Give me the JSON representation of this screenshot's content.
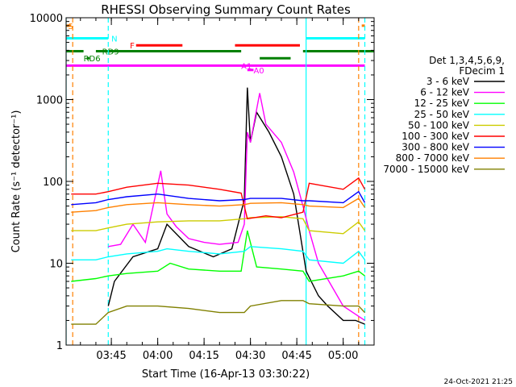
{
  "chart_data": {
    "type": "line",
    "title": "RHESSI Observing Summary Count Rates",
    "xlabel": "Start Time (16-Apr-13 03:30:22)",
    "ylabel": "Count Rate (s⁻¹ detector⁻¹)",
    "ylog": true,
    "ylim": [
      1,
      10000
    ],
    "yticks": [
      1,
      10,
      100,
      1000,
      10000
    ],
    "ytick_labels": [
      "1",
      "10",
      "100",
      "1000",
      "10000"
    ],
    "xlim": [
      "03:30:22",
      "05:10:00"
    ],
    "xticks": [
      "03:45",
      "04:00",
      "04:15",
      "04:30",
      "04:45",
      "05:00"
    ],
    "legend_header": [
      "Det 1,3,4,5,6,9,",
      "FDecim 1"
    ],
    "legend_position": "right",
    "timestamp": "24-Oct-2021 21:25",
    "series": [
      {
        "name": "3 - 6 keV",
        "color": "#000000",
        "x": [
          "03:31:30",
          "03:38",
          "03:44",
          "03:46",
          "03:52",
          "04:00",
          "04:03",
          "04:10",
          "04:18",
          "04:24",
          "04:28",
          "04:29",
          "04:30",
          "04:32",
          "04:36",
          "04:40",
          "04:44",
          "04:48",
          "04:52",
          "04:55",
          "05:00",
          "05:04",
          "05:07"
        ],
        "y": [
          null,
          null,
          3,
          6,
          12,
          15,
          30,
          16,
          12,
          15,
          60,
          1400,
          300,
          700,
          400,
          200,
          70,
          8,
          4,
          3,
          2,
          2,
          1.8
        ]
      },
      {
        "name": "6 - 12 keV",
        "color": "#ff00ff",
        "x": [
          "03:32",
          "03:38",
          "03:44",
          "03:48",
          "03:52",
          "03:56",
          "04:01",
          "04:03",
          "04:06",
          "04:10",
          "04:15",
          "04:20",
          "04:26",
          "04:28",
          "04:29",
          "04:30",
          "04:33",
          "04:35",
          "04:40",
          "04:44",
          "04:47",
          "04:49",
          "04:52",
          "05:00",
          "05:07"
        ],
        "y": [
          null,
          null,
          16,
          17,
          30,
          18,
          135,
          40,
          28,
          20,
          18,
          17,
          18,
          30,
          400,
          300,
          1200,
          500,
          300,
          130,
          50,
          25,
          10,
          3,
          2
        ]
      },
      {
        "name": "12 - 25 keV",
        "color": "#00ff00",
        "x": [
          "03:32",
          "03:40",
          "03:44",
          "03:50",
          "04:00",
          "04:04",
          "04:10",
          "04:20",
          "04:27",
          "04:29",
          "04:32",
          "04:40",
          "04:47",
          "04:49",
          "05:00",
          "05:05",
          "05:07"
        ],
        "y": [
          6,
          6.5,
          7,
          7.5,
          8,
          10,
          8.5,
          8,
          8,
          25,
          9,
          8.5,
          8,
          6,
          7,
          8,
          7
        ]
      },
      {
        "name": "25 - 50 keV",
        "color": "#00ffff",
        "x": [
          "03:32",
          "03:40",
          "03:44",
          "03:50",
          "04:00",
          "04:03",
          "04:10",
          "04:20",
          "04:28",
          "04:30",
          "04:40",
          "04:47",
          "04:49",
          "05:00",
          "05:05",
          "05:07"
        ],
        "y": [
          11,
          11,
          12,
          13,
          14,
          15,
          14,
          13,
          14,
          16,
          15,
          14,
          11,
          10,
          14,
          11
        ]
      },
      {
        "name": "50 - 100 keV",
        "color": "#cccc00",
        "x": [
          "03:32",
          "03:40",
          "03:44",
          "03:50",
          "04:00",
          "04:10",
          "04:20",
          "04:28",
          "04:30",
          "04:40",
          "04:47",
          "04:49",
          "05:00",
          "05:05",
          "05:07"
        ],
        "y": [
          25,
          25,
          27,
          30,
          32,
          33,
          33,
          35,
          36,
          37,
          35,
          25,
          23,
          32,
          25
        ]
      },
      {
        "name": "100 - 300 keV",
        "color": "#ff0000",
        "x": [
          "03:32",
          "03:40",
          "03:44",
          "03:50",
          "04:00",
          "04:10",
          "04:20",
          "04:27",
          "04:29",
          "04:35",
          "04:40",
          "04:47",
          "04:49",
          "05:00",
          "05:05",
          "05:07"
        ],
        "y": [
          70,
          70,
          75,
          85,
          95,
          90,
          80,
          72,
          35,
          38,
          36,
          42,
          95,
          80,
          110,
          80
        ]
      },
      {
        "name": "300 - 800 keV",
        "color": "#0000ff",
        "x": [
          "03:32",
          "03:40",
          "03:44",
          "03:50",
          "04:00",
          "04:10",
          "04:20",
          "04:28",
          "04:30",
          "04:40",
          "04:47",
          "04:49",
          "05:00",
          "05:05",
          "05:07"
        ],
        "y": [
          52,
          55,
          60,
          65,
          70,
          62,
          58,
          60,
          62,
          62,
          58,
          58,
          55,
          75,
          55
        ]
      },
      {
        "name": "800 - 7000 keV",
        "color": "#ff8000",
        "x": [
          "03:32",
          "03:40",
          "03:44",
          "03:50",
          "04:00",
          "04:10",
          "04:20",
          "04:28",
          "04:30",
          "04:40",
          "04:47",
          "04:49",
          "05:00",
          "05:05",
          "05:07"
        ],
        "y": [
          42,
          44,
          48,
          52,
          55,
          52,
          50,
          52,
          54,
          55,
          52,
          50,
          48,
          62,
          48
        ]
      },
      {
        "name": "7000 - 15000 keV",
        "color": "#808000",
        "x": [
          "03:32",
          "03:40",
          "03:44",
          "03:50",
          "04:00",
          "04:10",
          "04:20",
          "04:28",
          "04:30",
          "04:40",
          "04:47",
          "04:49",
          "05:00",
          "05:05",
          "05:07"
        ],
        "y": [
          1.8,
          1.8,
          2.5,
          3,
          3,
          2.8,
          2.5,
          2.5,
          3,
          3.5,
          3.5,
          3.2,
          3,
          3,
          2.5
        ]
      }
    ],
    "flags": [
      {
        "label": "S",
        "color": "#ff8000",
        "x": [
          "03:30:22",
          "03:32"
        ],
        "y": 8000,
        "label_x": "03:31"
      },
      {
        "label": "S",
        "color": "#ff8000",
        "x": [
          "05:06",
          "05:07"
        ],
        "y": 8000,
        "label_x": null
      },
      {
        "label": "N",
        "color": "#00ffff",
        "x": [
          "03:30:22",
          "03:44"
        ],
        "y": 5600,
        "label_x": "03:45"
      },
      {
        "label": "N",
        "color": "#00ffff",
        "x": [
          "04:48",
          "05:07"
        ],
        "y": 5600,
        "label_x": null
      },
      {
        "label": "F",
        "color": "#ff0000",
        "x": [
          "03:53",
          "04:08"
        ],
        "y": 4600,
        "label_x": "03:51"
      },
      {
        "label": "",
        "color": "#ff0000",
        "x": [
          "04:25",
          "04:46"
        ],
        "y": 4600,
        "label_x": null
      },
      {
        "label": "RD9",
        "color": "#008000",
        "x": [
          "03:30:22",
          "03:36"
        ],
        "y": 3900,
        "label_x": "03:42"
      },
      {
        "label": "",
        "color": "#008000",
        "x": [
          "03:40",
          "04:27"
        ],
        "y": 3900,
        "label_x": null
      },
      {
        "label": "",
        "color": "#008000",
        "x": [
          "04:47",
          "05:10"
        ],
        "y": 3900,
        "label_x": null
      },
      {
        "label": "RD6",
        "color": "#008000",
        "x": [
          "03:37",
          "03:38"
        ],
        "y": 3200,
        "label_x": "03:36"
      },
      {
        "label": "",
        "color": "#008000",
        "x": [
          "04:33",
          "04:43"
        ],
        "y": 3200,
        "label_x": null
      },
      {
        "label": "A1",
        "color": "#ff00ff",
        "x": [
          "03:30:22",
          "05:07"
        ],
        "y": 2600,
        "label_x": "04:27"
      },
      {
        "label": "A0",
        "color": "#ff00ff",
        "x": [
          "04:29",
          "04:31"
        ],
        "y": 2300,
        "label_x": "04:31"
      }
    ],
    "vlines": [
      {
        "x": "03:30:22",
        "color": "#00ffff",
        "dashed": false
      },
      {
        "x": "03:32:30",
        "color": "#ff8000",
        "dashed": true
      },
      {
        "x": "03:44",
        "color": "#00ffff",
        "dashed": true
      },
      {
        "x": "04:48",
        "color": "#00ffff",
        "dashed": false
      },
      {
        "x": "05:05",
        "color": "#ff8000",
        "dashed": true
      },
      {
        "x": "05:07",
        "color": "#00ffff",
        "dashed": true
      }
    ],
    "grid": false
  }
}
